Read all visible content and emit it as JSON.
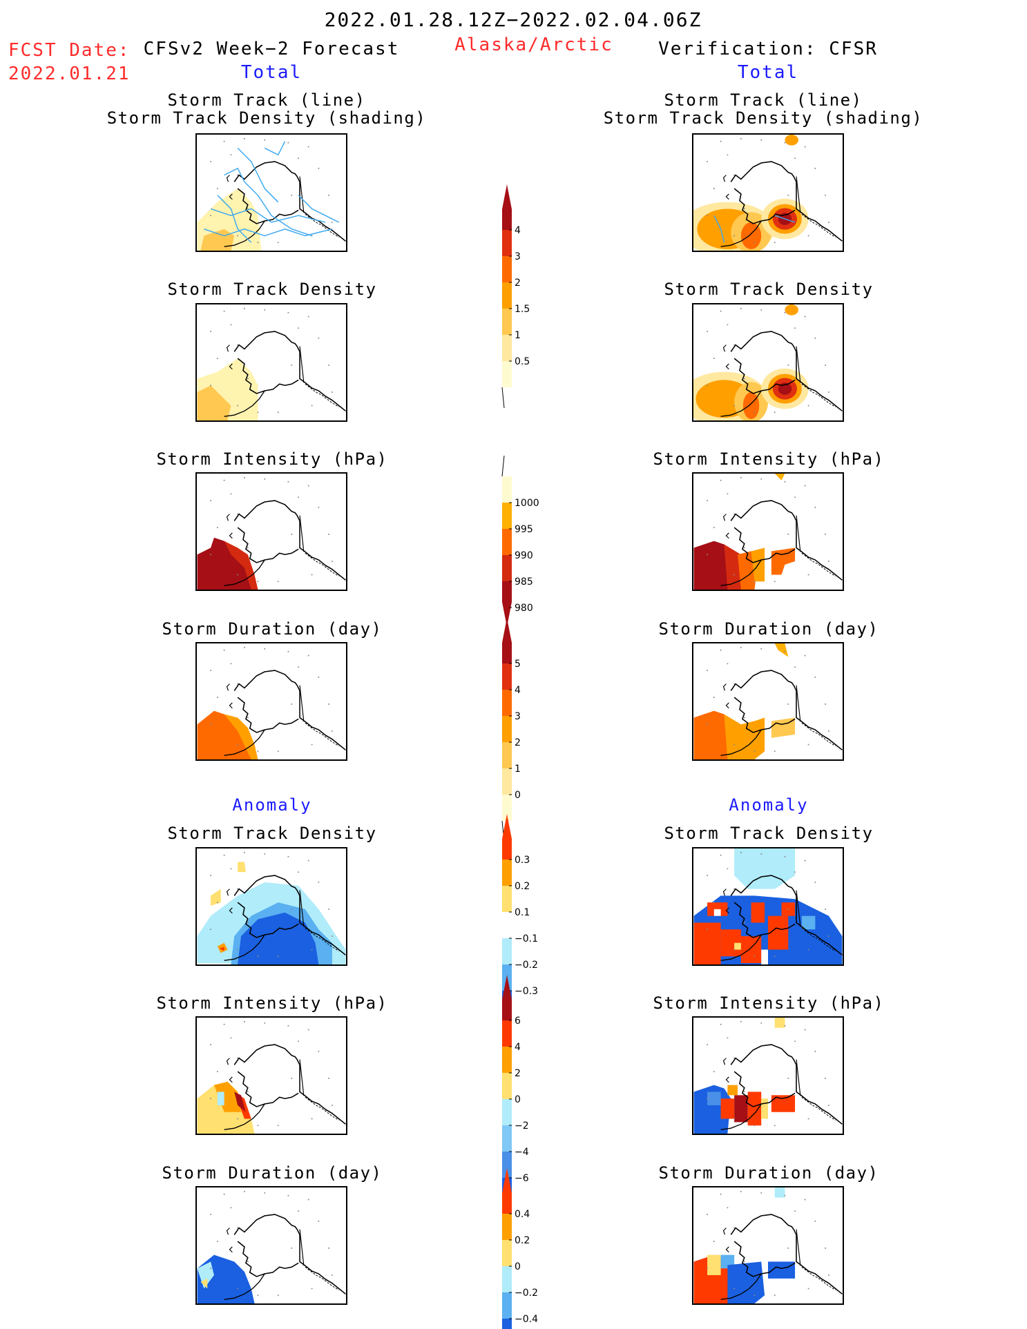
{
  "header": {
    "date_range": "2022.01.28.12Z−2022.02.04.06Z",
    "fcst_label": "FCST Date:",
    "fcst_date": "2022.01.21",
    "region": "Alaska/Arctic",
    "left_title": "CFSv2 Week−2 Forecast",
    "right_title": "Verification: CFSR",
    "left_sub": "Total",
    "right_sub": "Total",
    "left_anomaly": "Anomaly",
    "right_anomaly": "Anomaly"
  },
  "panels": {
    "track_line_1": "Storm Track (line)",
    "track_line_2": "Storm Track Density (shading)",
    "density": "Storm Track Density",
    "intensity": "Storm Intensity (hPa)",
    "duration": "Storm Duration (day)"
  },
  "colorbars": {
    "density_total": {
      "ticks": [
        "4",
        "3",
        "2",
        "1.5",
        "1",
        "0.5"
      ],
      "colors": [
        "#a50f15",
        "#e03010",
        "#ff6a00",
        "#ffa000",
        "#ffc850",
        "#ffe8a0",
        "#fffbd0"
      ]
    },
    "intensity_total": {
      "ticks": [
        "1000",
        "995",
        "990",
        "985",
        "980"
      ],
      "colors": [
        "#fffbd0",
        "#ffb000",
        "#ff6a00",
        "#d42a10",
        "#a50f15"
      ]
    },
    "duration_total": {
      "ticks": [
        "5",
        "4",
        "3",
        "2",
        "1",
        "0"
      ],
      "colors": [
        "#a50f15",
        "#e03010",
        "#ff6a00",
        "#ffa000",
        "#ffc850",
        "#ffe8a0",
        "#fffbd0"
      ]
    },
    "density_anom": {
      "ticks": [
        "0.3",
        "0.2",
        "0.1",
        "−0.1",
        "−0.2",
        "−0.3"
      ],
      "colors": [
        "#ff3a00",
        "#ffa000",
        "#ffe070",
        "#ffffff",
        "#b0ecfa",
        "#5ab0f0",
        "#1a60e0"
      ]
    },
    "intensity_anom": {
      "ticks": [
        "6",
        "4",
        "2",
        "0",
        "−2",
        "−4",
        "−6"
      ],
      "colors": [
        "#a50f15",
        "#ff3a00",
        "#ffa000",
        "#ffe070",
        "#b0ecfa",
        "#80c8f5",
        "#4a90e8",
        "#1a60e0"
      ]
    },
    "duration_anom": {
      "ticks": [
        "0.4",
        "0.2",
        "0",
        "−0.2",
        "−0.4"
      ],
      "colors": [
        "#ff3a00",
        "#ffa000",
        "#ffe070",
        "#b0ecfa",
        "#5ab0f0",
        "#1a60e0"
      ]
    }
  }
}
